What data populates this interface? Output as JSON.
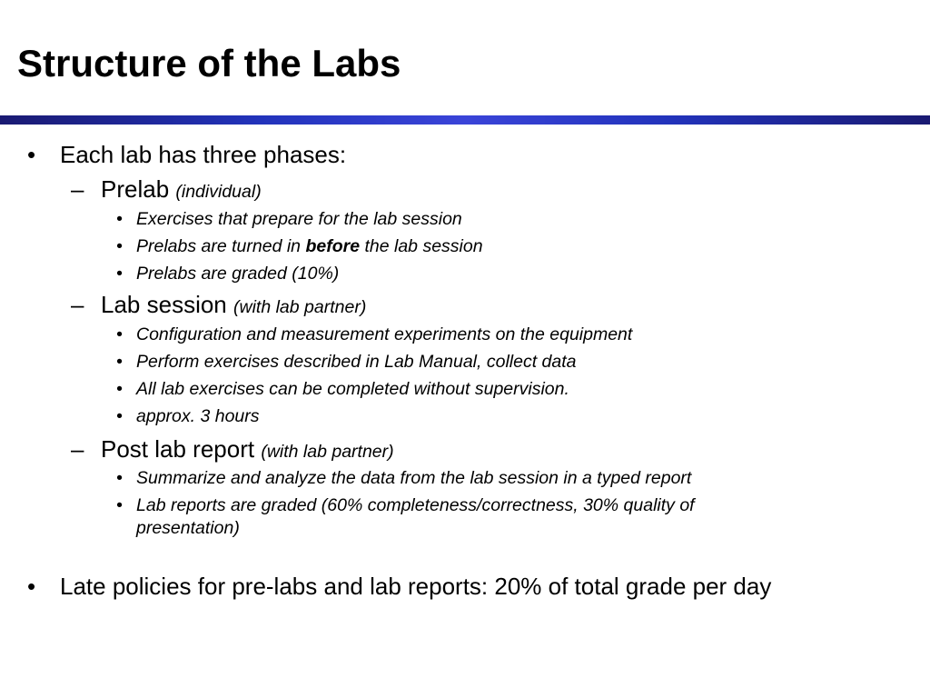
{
  "title": "Structure of the Labs",
  "bullets": {
    "b1": "Each lab has three phases:",
    "prelab": {
      "label": "Prelab",
      "note": "(individual)"
    },
    "prelab_items": {
      "i1": "Exercises that prepare for the lab session",
      "i2_pre": "Prelabs are turned in ",
      "i2_bold": "before",
      "i2_post": " the lab session",
      "i3": "Prelabs are graded (10%)"
    },
    "session": {
      "label": "Lab session",
      "note": "(with lab partner)"
    },
    "session_items": {
      "i1": "Configuration and measurement experiments on the equipment",
      "i2": "Perform exercises described in Lab Manual, collect data",
      "i3": "All lab exercises can be completed without supervision.",
      "i4": "approx. 3 hours"
    },
    "post": {
      "label": "Post lab report",
      "note": "(with lab partner)"
    },
    "post_items": {
      "i1": "Summarize and analyze the data from the lab session in a typed report",
      "i2_line1": "Lab reports are graded (60% completeness/correctness, 30% quality of",
      "i2_line2": "presentation)"
    },
    "b2": "Late policies for pre-labs and lab reports: 20% of total grade per day"
  },
  "marks": {
    "bullet": "•",
    "dash": "–"
  },
  "colors": {
    "rule_dark": "#1a1a72",
    "rule_light": "#3a44d8"
  }
}
